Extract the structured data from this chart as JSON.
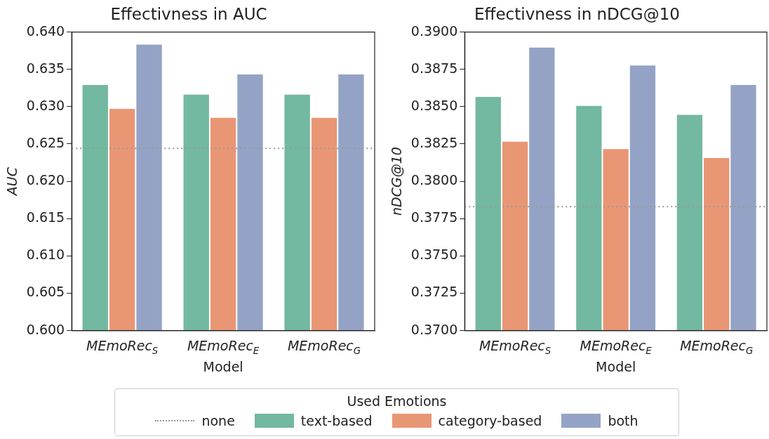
{
  "chart_data": [
    {
      "type": "bar",
      "title": "Effectivness in AUC",
      "xlabel": "Model",
      "ylabel": "AUC",
      "categories": [
        "MEmoRec$_{S}$",
        "MEmoRec$_{E}$",
        "MEmoRec$_{G}$"
      ],
      "series": [
        {
          "name": "text-based",
          "color": "#73b8a0",
          "values": [
            0.633,
            0.6317,
            0.6317
          ]
        },
        {
          "name": "category-based",
          "color": "#e99675",
          "values": [
            0.6298,
            0.6286,
            0.6286
          ]
        },
        {
          "name": "both",
          "color": "#94a3c5",
          "values": [
            0.6384,
            0.6344,
            0.6344
          ]
        }
      ],
      "ylim": [
        0.6,
        0.64
      ],
      "yticks": [
        {
          "value": 0.6,
          "label": "0.600"
        },
        0.605,
        {
          "value": 0.61,
          "label": "0.610"
        },
        0.615,
        {
          "value": 0.62,
          "label": "0.620"
        },
        0.625,
        {
          "value": 0.63,
          "label": "0.630"
        },
        0.635,
        {
          "value": 0.64,
          "label": "0.640"
        }
      ],
      "ref_lines": [
        {
          "axis": "y",
          "value": 0.6244,
          "label": "none",
          "color": "#999999",
          "line_style": "dotted"
        }
      ],
      "legend": "bottom",
      "legend_title": "Used Emotions"
    },
    {
      "type": "bar",
      "title": "Effectivness in nDCG@10",
      "xlabel": "Model",
      "ylabel": "nDCG@10",
      "categories": [
        "MEmoRec$_{S}$",
        "MEmoRec$_{E}$",
        "MEmoRec$_{G}$"
      ],
      "series": [
        {
          "color": "#73b8a0",
          "values": [
            0.3857,
            0.3851,
            0.3845
          ]
        },
        {
          "color": "#e99675",
          "values": [
            0.3827,
            0.3822,
            0.3816
          ]
        },
        {
          "color": "#94a3c5",
          "values": [
            0.389,
            0.3878,
            0.3865
          ]
        }
      ],
      "ylim": [
        0.37,
        0.39
      ],
      "yticks": [
        {
          "value": 0.37,
          "label": "0.3700"
        },
        0.3725,
        {
          "value": 0.375,
          "label": "0.3750"
        },
        0.3775,
        {
          "value": 0.38,
          "label": "0.3800"
        },
        0.3825,
        {
          "value": 0.385,
          "label": "0.3850"
        },
        0.3875,
        {
          "value": 0.39,
          "label": "0.3900"
        }
      ],
      "ref_lines": [
        {
          "axis": "y",
          "value": 0.3783,
          "color": "#999999",
          "line_style": "dotted"
        }
      ]
    }
  ]
}
